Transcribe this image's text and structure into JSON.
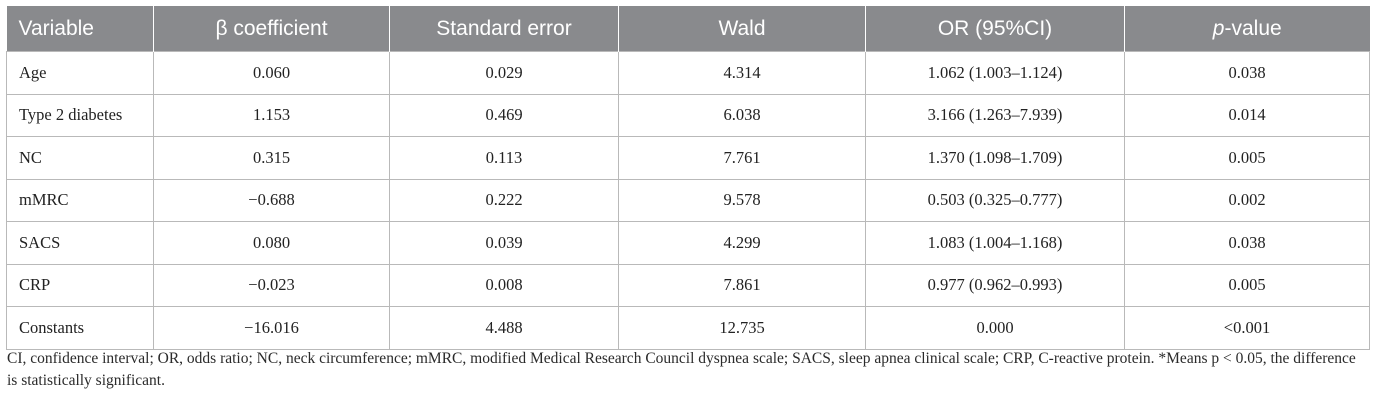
{
  "table": {
    "headers": [
      "Variable",
      "β coefficient",
      "Standard error",
      "Wald",
      "OR (95%CI)",
      "p-value"
    ],
    "header_p_italic": "p",
    "header_p_rest": "-value",
    "rows": [
      [
        "Age",
        "0.060",
        "0.029",
        "4.314",
        "1.062 (1.003–1.124)",
        "0.038"
      ],
      [
        "Type 2 diabetes",
        "1.153",
        "0.469",
        "6.038",
        "3.166 (1.263–7.939)",
        "0.014"
      ],
      [
        "NC",
        "0.315",
        "0.113",
        "7.761",
        "1.370 (1.098–1.709)",
        "0.005"
      ],
      [
        "mMRC",
        "−0.688",
        "0.222",
        "9.578",
        "0.503 (0.325–0.777)",
        "0.002"
      ],
      [
        "SACS",
        "0.080",
        "0.039",
        "4.299",
        "1.083 (1.004–1.168)",
        "0.038"
      ],
      [
        "CRP",
        "−0.023",
        "0.008",
        "7.861",
        "0.977 (0.962–0.993)",
        "0.005"
      ],
      [
        "Constants",
        "−16.016",
        "4.488",
        "12.735",
        "0.000",
        "<0.001"
      ]
    ]
  },
  "footnote": "CI, confidence interval; OR, odds ratio; NC, neck circumference; mMRC, modified Medical Research Council dyspnea scale; SACS, sleep apnea clinical scale; CRP, C-reactive protein. *Means p < 0.05, the difference is statistically significant.",
  "colors": {
    "header_bg": "#898a8d",
    "header_text": "#ffffff",
    "border": "#b9b9b9"
  }
}
